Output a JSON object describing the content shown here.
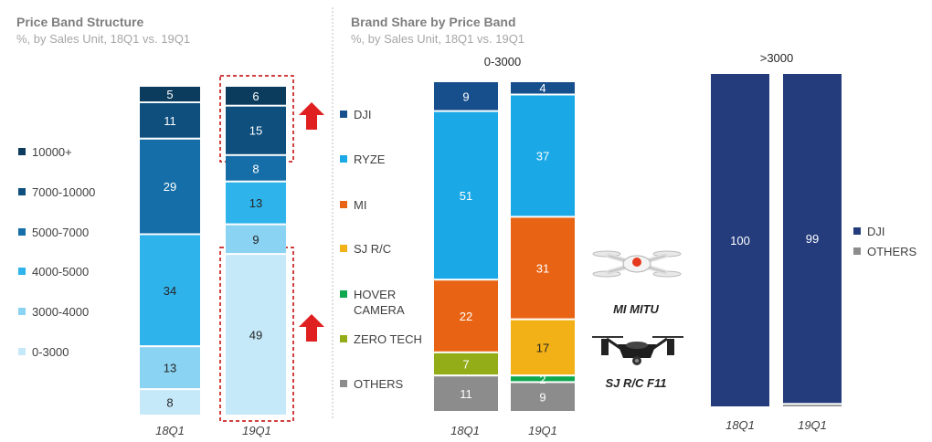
{
  "colors": {
    "b10000": "#0b3c5d",
    "b7000": "#0e4f7e",
    "b5000": "#156ea8",
    "b4000": "#2fb3eb",
    "b3000": "#8ad3f2",
    "b0": "#c6e9f9",
    "dji": "#174f8c",
    "ryze": "#1aa9e6",
    "mi": "#e86414",
    "sjrc": "#f2b116",
    "hover": "#10a84e",
    "zero": "#93ad19",
    "others": "#8c8c8c",
    "dji_big": "#243c7c",
    "arrow": "#e02020",
    "dash": "#c00000",
    "divider": "#bfbfbf"
  },
  "left": {
    "title": "Price Band Structure",
    "subtitle": "%, by Sales Unit, 18Q1 vs. 19Q1",
    "legend": [
      "10000+",
      "7000-10000",
      "5000-7000",
      "4000-5000",
      "3000-4000",
      "0-3000"
    ]
  },
  "right": {
    "title": "Brand Share by Price Band",
    "subtitle": "%, by Sales Unit, 18Q1 vs. 19Q1",
    "legend": [
      "DJI",
      "RYZE",
      "MI",
      "SJ R/C",
      "HOVER CAMERA",
      "ZERO TECH",
      "OTHERS"
    ],
    "legend_big": [
      "DJI",
      "OTHERS"
    ],
    "product_labels": [
      "MI MITU",
      "SJ R/C F11"
    ]
  },
  "chart_data": [
    {
      "type": "bar",
      "stacked": true,
      "title": "Price Band Structure",
      "categories": [
        "18Q1",
        "19Q1"
      ],
      "series": [
        {
          "name": "0-3000",
          "values": [
            8,
            49
          ]
        },
        {
          "name": "3000-4000",
          "values": [
            13,
            9
          ]
        },
        {
          "name": "4000-5000",
          "values": [
            34,
            13
          ]
        },
        {
          "name": "5000-7000",
          "values": [
            29,
            8
          ]
        },
        {
          "name": "7000-10000",
          "values": [
            11,
            15
          ]
        },
        {
          "name": "10000+",
          "values": [
            5,
            6
          ]
        }
      ]
    },
    {
      "type": "bar",
      "stacked": true,
      "title": "0-3000",
      "categories": [
        "18Q1",
        "19Q1"
      ],
      "series": [
        {
          "name": "OTHERS",
          "values": [
            11,
            9
          ]
        },
        {
          "name": "ZERO TECH",
          "values": [
            7,
            0
          ]
        },
        {
          "name": "HOVER CAMERA",
          "values": [
            0,
            2
          ]
        },
        {
          "name": "SJ R/C",
          "values": [
            0,
            17
          ]
        },
        {
          "name": "MI",
          "values": [
            22,
            31
          ]
        },
        {
          "name": "RYZE",
          "values": [
            51,
            37
          ]
        },
        {
          "name": "DJI",
          "values": [
            9,
            4
          ]
        }
      ]
    },
    {
      "type": "bar",
      "stacked": true,
      "title": ">3000",
      "categories": [
        "18Q1",
        "19Q1"
      ],
      "series": [
        {
          "name": "OTHERS",
          "values": [
            0,
            1
          ]
        },
        {
          "name": "DJI",
          "values": [
            100,
            99
          ]
        }
      ]
    }
  ]
}
